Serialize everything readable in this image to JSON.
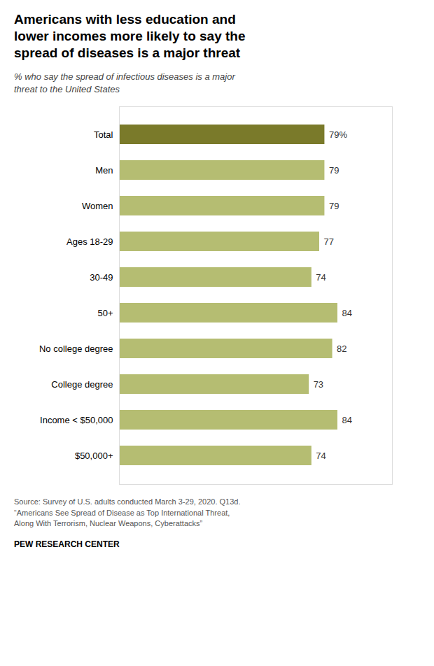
{
  "chart_data": {
    "type": "bar",
    "orientation": "horizontal",
    "title": "Americans with less education and\nlower incomes more likely to say the\nspread of diseases is a major threat",
    "subtitle": "% who say the spread of infectious diseases is a major\nthreat to the United States",
    "categories": [
      "Total",
      "Men",
      "Women",
      "Ages 18-29",
      "30-49",
      "50+",
      "No college degree",
      "College degree",
      "Income < $50,000",
      "$50,000+"
    ],
    "values": [
      79,
      79,
      79,
      77,
      74,
      84,
      82,
      73,
      84,
      74
    ],
    "value_labels": [
      "79%",
      "79",
      "79",
      "77",
      "74",
      "84",
      "82",
      "73",
      "84",
      "74"
    ],
    "data_labels": true,
    "colors": [
      "#7a7a2a",
      "#b5bd72",
      "#b5bd72",
      "#b5bd72",
      "#b5bd72",
      "#b5bd72",
      "#b5bd72",
      "#b5bd72",
      "#b5bd72",
      "#b5bd72"
    ],
    "xlim": [
      0,
      105
    ],
    "tick_labels": "y",
    "grid": false,
    "source": "Source: Survey of U.S. adults conducted March 3-29, 2020. Q13d.\n“Americans See Spread of Disease as Top International Threat,\nAlong With Terrorism, Nuclear Weapons, Cyberattacks”",
    "footer": "PEW RESEARCH CENTER"
  }
}
